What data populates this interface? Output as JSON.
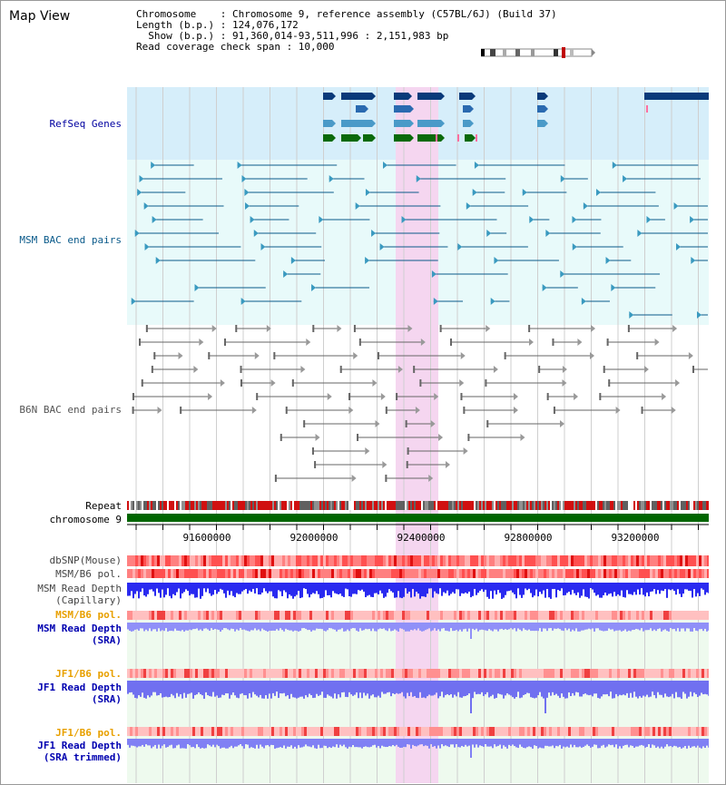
{
  "title": "Map View",
  "info": {
    "chromosome": "Chromosome    : Chromosome 9, reference assembly (C57BL/6J) (Build 37)",
    "length": "Length (b.p.) : 124,076,172",
    "show": "  Show (b.p.) : 91,360,014-93,511,996 : 2,151,983 bp",
    "coverage": "Read coverage check span : 10,000"
  },
  "tracks": {
    "refseq": {
      "label": "RefSeq Genes",
      "color": "#0000a0"
    },
    "msm_bac": {
      "label": "MSM BAC end pairs",
      "color": "#0a5a8a"
    },
    "b6n_bac": {
      "label": "B6N BAC end pairs",
      "color": "#555555"
    },
    "repeat": {
      "label": "Repeat",
      "color": "#000000"
    },
    "chromosome": {
      "label": "chromosome 9",
      "color": "#000000"
    },
    "dbsnp": {
      "label": "dbSNP(Mouse)",
      "color": "#444444"
    },
    "msm_b6_pol": {
      "label": "MSM/B6 pol.",
      "color": "#444444"
    },
    "msm_rd_cap": {
      "label": "MSM Read Depth\n(Capillary)",
      "color": "#444444"
    },
    "msm_b6_pol2": {
      "label": "MSM/B6 pol.",
      "color": "#e8a000"
    },
    "msm_rd_sra": {
      "label": "MSM Read Depth\n(SRA)",
      "color": "#0000b0"
    },
    "jf1_b6_pol": {
      "label": "JF1/B6 pol.",
      "color": "#e8a000"
    },
    "jf1_rd_sra": {
      "label": "JF1 Read Depth\n(SRA)",
      "color": "#0000b0"
    },
    "jf1_b6_pol2": {
      "label": "JF1/B6 pol.",
      "color": "#e8a000"
    },
    "jf1_rd_trim": {
      "label": "JF1 Read Depth\n(SRA trimmed)",
      "color": "#0000b0"
    }
  },
  "axis": {
    "ticks": [
      "91600000",
      "92000000",
      "92400000",
      "92800000",
      "93200000"
    ]
  },
  "colors": {
    "refseq_bg": "#d6eefa",
    "msm_bg": "#e8fafa",
    "sra_bg": "#eefaee",
    "highlight": "#f5d6f0",
    "chromosome_bar": "#006600"
  }
}
